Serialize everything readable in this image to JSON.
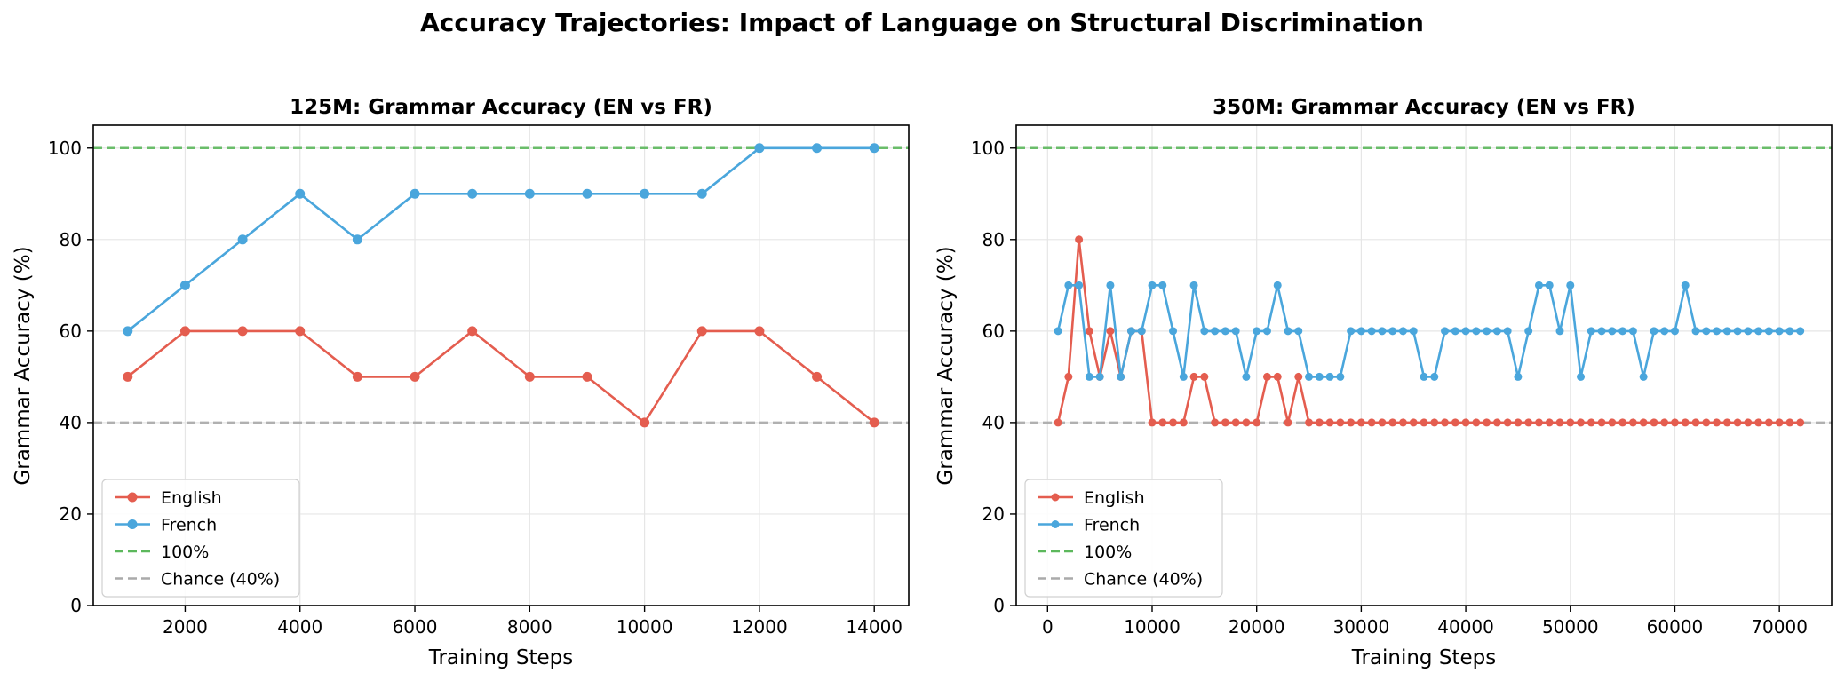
{
  "suptitle": "Accuracy Trajectories: Impact of Language on Structural Discrimination",
  "colors": {
    "english": "#e45d4f",
    "french": "#4aa6dc",
    "ref100": "#5cb85c",
    "chance": "#aaaaaa",
    "grid": "#e6e6e6",
    "axis": "#000000"
  },
  "chart_data": [
    {
      "type": "line",
      "title": "125M: Grammar Accuracy (EN vs FR)",
      "xlabel": "Training Steps",
      "ylabel": "Grammar Accuracy (%)",
      "xlim": [
        400,
        14600
      ],
      "ylim": [
        0,
        105
      ],
      "xticks": [
        2000,
        4000,
        6000,
        8000,
        10000,
        12000,
        14000
      ],
      "yticks": [
        0,
        20,
        40,
        60,
        80,
        100
      ],
      "grid": true,
      "legend": "lower-left",
      "series": [
        {
          "name": "English",
          "color": "#e45d4f",
          "x": [
            1000,
            2000,
            3000,
            4000,
            5000,
            6000,
            7000,
            8000,
            9000,
            10000,
            11000,
            12000,
            13000,
            14000
          ],
          "y": [
            50,
            60,
            60,
            60,
            50,
            50,
            60,
            50,
            50,
            40,
            60,
            60,
            50,
            40
          ]
        },
        {
          "name": "French",
          "color": "#4aa6dc",
          "x": [
            1000,
            2000,
            3000,
            4000,
            5000,
            6000,
            7000,
            8000,
            9000,
            10000,
            11000,
            12000,
            13000,
            14000
          ],
          "y": [
            60,
            70,
            80,
            90,
            80,
            90,
            90,
            90,
            90,
            90,
            90,
            100,
            100,
            100
          ]
        }
      ],
      "hlines": [
        {
          "name": "100%",
          "y": 100,
          "color": "#5cb85c"
        },
        {
          "name": "Chance (40%)",
          "y": 40,
          "color": "#aaaaaa"
        }
      ]
    },
    {
      "type": "line",
      "title": "350M: Grammar Accuracy (EN vs FR)",
      "xlabel": "Training Steps",
      "ylabel": "Grammar Accuracy (%)",
      "xlim": [
        -3000,
        75000
      ],
      "ylim": [
        0,
        105
      ],
      "xticks": [
        0,
        10000,
        20000,
        30000,
        40000,
        50000,
        60000,
        70000
      ],
      "yticks": [
        0,
        20,
        40,
        60,
        80,
        100
      ],
      "grid": true,
      "legend": "lower-left",
      "series": [
        {
          "name": "English",
          "color": "#e45d4f",
          "x": [
            1000,
            2000,
            3000,
            4000,
            5000,
            6000,
            7000,
            8000,
            9000,
            10000,
            11000,
            12000,
            13000,
            14000,
            15000,
            16000,
            17000,
            18000,
            19000,
            20000,
            21000,
            22000,
            23000,
            24000,
            25000,
            26000,
            27000,
            28000,
            29000,
            30000,
            31000,
            32000,
            33000,
            34000,
            35000,
            36000,
            37000,
            38000,
            39000,
            40000,
            41000,
            42000,
            43000,
            44000,
            45000,
            46000,
            47000,
            48000,
            49000,
            50000,
            51000,
            52000,
            53000,
            54000,
            55000,
            56000,
            57000,
            58000,
            59000,
            60000,
            61000,
            62000,
            63000,
            64000,
            65000,
            66000,
            67000,
            68000,
            69000,
            70000,
            71000,
            72000
          ],
          "y": [
            40,
            50,
            80,
            60,
            50,
            60,
            50,
            60,
            60,
            40,
            40,
            40,
            40,
            50,
            50,
            40,
            40,
            40,
            40,
            40,
            50,
            50,
            40,
            50,
            40,
            40,
            40,
            40,
            40,
            40,
            40,
            40,
            40,
            40,
            40,
            40,
            40,
            40,
            40,
            40,
            40,
            40,
            40,
            40,
            40,
            40,
            40,
            40,
            40,
            40,
            40,
            40,
            40,
            40,
            40,
            40,
            40,
            40,
            40,
            40,
            40,
            40,
            40,
            40,
            40,
            40,
            40,
            40,
            40,
            40,
            40,
            40
          ]
        },
        {
          "name": "French",
          "color": "#4aa6dc",
          "x": [
            1000,
            2000,
            3000,
            4000,
            5000,
            6000,
            7000,
            8000,
            9000,
            10000,
            11000,
            12000,
            13000,
            14000,
            15000,
            16000,
            17000,
            18000,
            19000,
            20000,
            21000,
            22000,
            23000,
            24000,
            25000,
            26000,
            27000,
            28000,
            29000,
            30000,
            31000,
            32000,
            33000,
            34000,
            35000,
            36000,
            37000,
            38000,
            39000,
            40000,
            41000,
            42000,
            43000,
            44000,
            45000,
            46000,
            47000,
            48000,
            49000,
            50000,
            51000,
            52000,
            53000,
            54000,
            55000,
            56000,
            57000,
            58000,
            59000,
            60000,
            61000,
            62000,
            63000,
            64000,
            65000,
            66000,
            67000,
            68000,
            69000,
            70000,
            71000,
            72000
          ],
          "y": [
            60,
            70,
            70,
            50,
            50,
            70,
            50,
            60,
            60,
            70,
            70,
            60,
            50,
            70,
            60,
            60,
            60,
            60,
            50,
            60,
            60,
            70,
            60,
            60,
            50,
            50,
            50,
            50,
            60,
            60,
            60,
            60,
            60,
            60,
            60,
            50,
            50,
            60,
            60,
            60,
            60,
            60,
            60,
            60,
            50,
            60,
            70,
            70,
            60,
            70,
            50,
            60,
            60,
            60,
            60,
            60,
            50,
            60,
            60,
            60,
            70,
            60,
            60,
            60,
            60,
            60,
            60,
            60,
            60,
            60,
            60,
            60
          ]
        }
      ],
      "hlines": [
        {
          "name": "100%",
          "y": 100,
          "color": "#5cb85c"
        },
        {
          "name": "Chance (40%)",
          "y": 40,
          "color": "#aaaaaa"
        }
      ]
    }
  ]
}
